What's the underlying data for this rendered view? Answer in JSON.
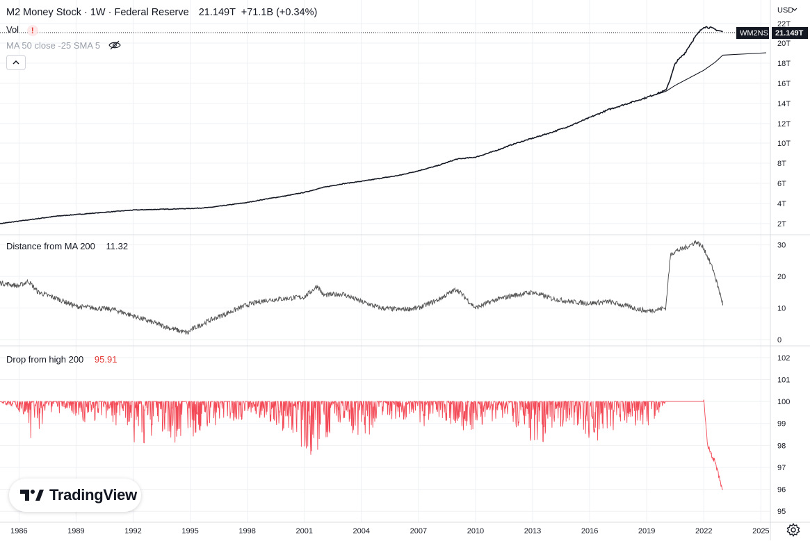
{
  "header": {
    "title": "M2 Money Stock · 1W · Federal Reserve",
    "last_value": "21.149T",
    "change": "+71.1B (+0.34%)",
    "vol_label": "Vol",
    "vol_alert": "!",
    "ma_indicator": "MA 50 close -25 SMA 5",
    "hide_icon": "eye-off-icon",
    "collapse_icon": "chevron-up-icon"
  },
  "price_axis": {
    "currency": "USD",
    "ticks": [
      "22T",
      "20T",
      "18T",
      "16T",
      "14T",
      "12T",
      "10T",
      "8T",
      "6T",
      "4T",
      "2T"
    ],
    "symbol_badge": "WM2NS",
    "price_badge": "21.149T"
  },
  "time_axis": {
    "ticks": [
      "1986",
      "1989",
      "1992",
      "1995",
      "1998",
      "2001",
      "2004",
      "2007",
      "2010",
      "2013",
      "2016",
      "2019",
      "2022",
      "2025"
    ]
  },
  "panes": {
    "distance": {
      "label": "Distance from MA 200",
      "value": "11.32",
      "ticks": [
        "30",
        "20",
        "10",
        "0"
      ]
    },
    "drop": {
      "label": "Drop from high 200",
      "value": "95.91",
      "ticks": [
        "102",
        "101",
        "100",
        "99",
        "98",
        "97",
        "96",
        "95"
      ]
    }
  },
  "branding": {
    "logo_text": "TradingView"
  },
  "settings_icon": "gear-icon",
  "colors": {
    "price_line": "#131722",
    "distance_line": "#555555",
    "drop_line": "#f23645",
    "drop_value": "#e53935",
    "badge_dark": "#131722",
    "grid": "#eef0f3"
  },
  "chart_data": [
    {
      "type": "line",
      "title": "M2 Money Stock · 1W · Federal Reserve",
      "ylabel": "USD",
      "x": [
        1985.0,
        1986,
        1987,
        1988,
        1989,
        1990,
        1991,
        1992,
        1993,
        1994,
        1995,
        1996,
        1997,
        1998,
        1999,
        2000,
        2001,
        2002,
        2003,
        2004,
        2005,
        2006,
        2007,
        2008,
        2009,
        2010,
        2011,
        2012,
        2013,
        2014,
        2015,
        2016,
        2017,
        2018,
        2019,
        2020.0,
        2020.25,
        2020.5,
        2021,
        2021.5,
        2022.0,
        2022.3,
        2022.6,
        2023.0
      ],
      "series": [
        {
          "name": "WM2NS",
          "values": [
            2.0,
            2.25,
            2.5,
            2.75,
            2.9,
            3.05,
            3.2,
            3.35,
            3.4,
            3.45,
            3.5,
            3.6,
            3.85,
            4.1,
            4.45,
            4.75,
            5.1,
            5.6,
            5.95,
            6.2,
            6.5,
            6.8,
            7.25,
            7.75,
            8.4,
            8.6,
            9.2,
            9.9,
            10.5,
            11.1,
            11.8,
            12.6,
            13.4,
            14.0,
            14.6,
            15.3,
            16.5,
            18.0,
            19.0,
            20.5,
            21.7,
            21.6,
            21.4,
            21.149
          ]
        },
        {
          "name": "MA 50 close -25 SMA 5",
          "values": [
            2.0,
            2.25,
            2.5,
            2.75,
            2.9,
            3.05,
            3.2,
            3.35,
            3.4,
            3.45,
            3.5,
            3.6,
            3.85,
            4.1,
            4.45,
            4.75,
            5.1,
            5.6,
            5.95,
            6.2,
            6.5,
            6.8,
            7.25,
            7.75,
            8.4,
            8.6,
            9.2,
            9.9,
            10.5,
            11.1,
            11.8,
            12.6,
            13.4,
            14.0,
            14.6,
            15.2,
            15.5,
            15.8,
            16.3,
            16.8,
            17.3,
            17.7,
            18.1,
            18.8
          ]
        }
      ],
      "ylim": [
        1.5,
        23
      ],
      "xlim": [
        1985.0,
        2025.5
      ]
    },
    {
      "type": "line",
      "title": "Distance from MA 200",
      "x": [
        1985.0,
        1986,
        1986.5,
        1987,
        1988,
        1989,
        1990,
        1991,
        1992,
        1993,
        1994,
        1994.9,
        1995,
        1996,
        1997,
        1998,
        1999,
        2000,
        2001,
        2001.7,
        2002,
        2003,
        2004,
        2005,
        2006,
        2007,
        2008,
        2009,
        2009.5,
        2010,
        2011,
        2012,
        2013,
        2014,
        2015,
        2016,
        2017,
        2018,
        2019,
        2020.0,
        2020.25,
        2020.5,
        2021,
        2021.6,
        2022.0,
        2022.5,
        2023.0
      ],
      "series": [
        {
          "name": "Distance from MA 200",
          "values": [
            18,
            17,
            18.5,
            15,
            13,
            10.5,
            10,
            9.5,
            7.5,
            5.5,
            3.5,
            2,
            3,
            6,
            8.5,
            11,
            12.5,
            13,
            13.5,
            17,
            14,
            14.5,
            12,
            10,
            9.5,
            10,
            12.5,
            16,
            13,
            10,
            12.5,
            14,
            15,
            13,
            12,
            11.5,
            12,
            10.5,
            9,
            10,
            27,
            28,
            29,
            31,
            29,
            22,
            11.32
          ]
        }
      ],
      "ylim": [
        -2,
        33
      ],
      "xlim": [
        1985.0,
        2025.5
      ]
    },
    {
      "type": "line",
      "title": "Drop from high 200",
      "x": [
        1985.0,
        1986.5,
        1986.6,
        1987.5,
        1988.5,
        1989.5,
        1990.5,
        1991.3,
        1992.3,
        1993.3,
        1994.3,
        1995.3,
        1996.3,
        1997.3,
        1998.3,
        1999.3,
        2000.3,
        2001.7,
        2002.5,
        2003.5,
        2004.5,
        2005.5,
        2006.5,
        2007.5,
        2008.5,
        2009.5,
        2010.5,
        2011.5,
        2012.5,
        2013.3,
        2014.3,
        2015.3,
        2016.3,
        2017.3,
        2018.3,
        2019.3,
        2020.0,
        2021.0,
        2022.0,
        2022.2,
        2022.6,
        2023.0
      ],
      "series": [
        {
          "name": "Drop from high 200",
          "values": [
            100,
            99.2,
            97.7,
            99.4,
            99.5,
            99.0,
            99.2,
            98.8,
            97.8,
            98.5,
            98.0,
            98.3,
            98.8,
            99.1,
            99.3,
            99.0,
            98.4,
            97.1,
            98.8,
            98.2,
            98.5,
            99.1,
            99.2,
            98.7,
            98.9,
            98.5,
            99.0,
            99.2,
            98.6,
            97.8,
            98.8,
            98.9,
            97.9,
            98.7,
            98.9,
            98.8,
            100,
            100,
            100,
            98.0,
            97.2,
            95.91
          ]
        }
      ],
      "ylim": [
        94.5,
        102.5
      ],
      "xlim": [
        1985.0,
        2025.5
      ]
    }
  ]
}
